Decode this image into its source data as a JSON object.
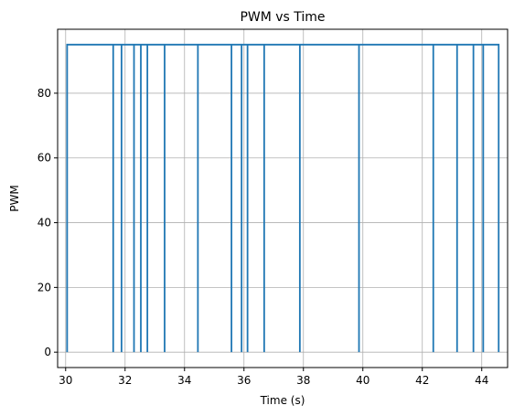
{
  "chart_data": {
    "type": "line",
    "title": "PWM vs Time",
    "xlabel": "Time (s)",
    "ylabel": "PWM",
    "xlim": [
      29.73,
      44.87
    ],
    "ylim": [
      -4.75,
      99.75
    ],
    "x_ticks": [
      30,
      32,
      34,
      36,
      38,
      40,
      42,
      44
    ],
    "y_ticks": [
      0,
      20,
      40,
      60,
      80
    ],
    "grid": true,
    "step": "post",
    "color": "#1f77b4",
    "series": [
      {
        "x": [
          30.05,
          30.05,
          31.6,
          31.6,
          31.6,
          31.6,
          31.88,
          31.88,
          31.88,
          31.88,
          32.3,
          32.3,
          32.3,
          32.3,
          32.53,
          32.53,
          32.53,
          32.53,
          32.75,
          32.75,
          32.75,
          32.75,
          33.33,
          33.33,
          33.33,
          33.33,
          34.45,
          34.45,
          34.45,
          34.45,
          35.58,
          35.58,
          35.58,
          35.58,
          35.92,
          35.92,
          35.92,
          35.92,
          36.12,
          36.12,
          36.12,
          36.12,
          36.68,
          36.68,
          36.68,
          36.68,
          37.88,
          37.88,
          37.88,
          37.88,
          39.87,
          39.87,
          39.87,
          39.87,
          42.37,
          42.37,
          42.37,
          42.37,
          43.17,
          43.17,
          43.17,
          43.17,
          43.72,
          43.72,
          43.72,
          43.72,
          44.05,
          44.05,
          44.05,
          44.05,
          44.57,
          44.57
        ],
        "y": [
          0,
          95,
          95,
          0,
          0,
          95,
          95,
          0,
          0,
          95,
          95,
          0,
          0,
          95,
          95,
          0,
          0,
          95,
          95,
          0,
          0,
          95,
          95,
          0,
          0,
          95,
          95,
          0,
          0,
          95,
          95,
          0,
          0,
          95,
          95,
          0,
          0,
          95,
          95,
          0,
          0,
          95,
          95,
          0,
          0,
          95,
          95,
          0,
          0,
          95,
          95,
          0,
          0,
          95,
          95,
          0,
          0,
          95,
          95,
          0,
          0,
          95,
          95,
          0,
          0,
          95,
          95,
          0,
          0,
          95,
          95,
          0
        ]
      }
    ]
  }
}
